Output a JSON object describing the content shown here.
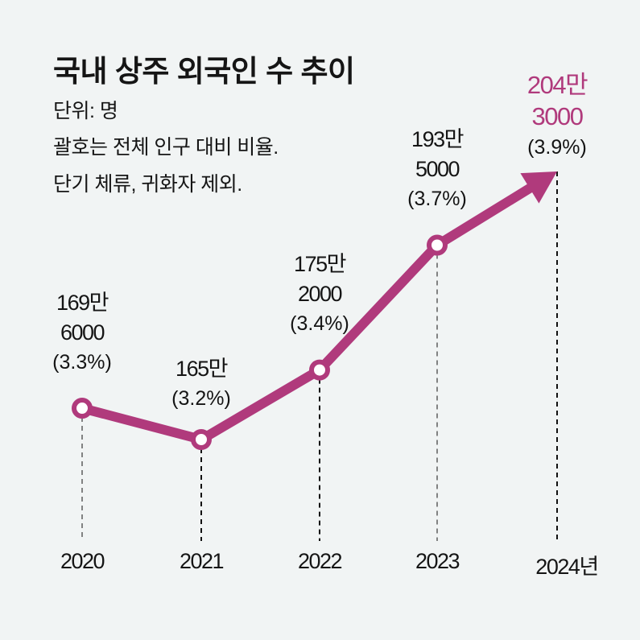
{
  "header": {
    "title": "국내 상주 외국인 수 추이",
    "unit_note": "단위: 명",
    "note_1": "괄호는 전체 인구 대비 비율.",
    "note_2": "단기 체류, 귀화자 제외."
  },
  "colors": {
    "line": "#b03a7c",
    "background": "#f1f4f4",
    "text": "#151515"
  },
  "chart_data": {
    "type": "line",
    "title": "국내 상주 외국인 수 추이",
    "ylabel": "단위: 명",
    "xlabel": "",
    "categories": [
      "2020",
      "2021",
      "2022",
      "2023",
      "2024년"
    ],
    "values": [
      1696000,
      1650000,
      1752000,
      1935000,
      2043000
    ],
    "percent_of_population": [
      3.3,
      3.2,
      3.4,
      3.7,
      3.9
    ],
    "labels": [
      {
        "line1": "169만",
        "line2": "6000",
        "pct": "(3.3%)"
      },
      {
        "line1": "165만",
        "line2": "",
        "pct": "(3.2%)"
      },
      {
        "line1": "175만",
        "line2": "2000",
        "pct": "(3.4%)"
      },
      {
        "line1": "193만",
        "line2": "5000",
        "pct": "(3.7%)"
      },
      {
        "line1": "204만",
        "line2": "3000",
        "pct": "(3.9%)"
      }
    ],
    "highlight_index": 4,
    "last_point_marker": "arrow",
    "grid": false,
    "legend": "none"
  }
}
